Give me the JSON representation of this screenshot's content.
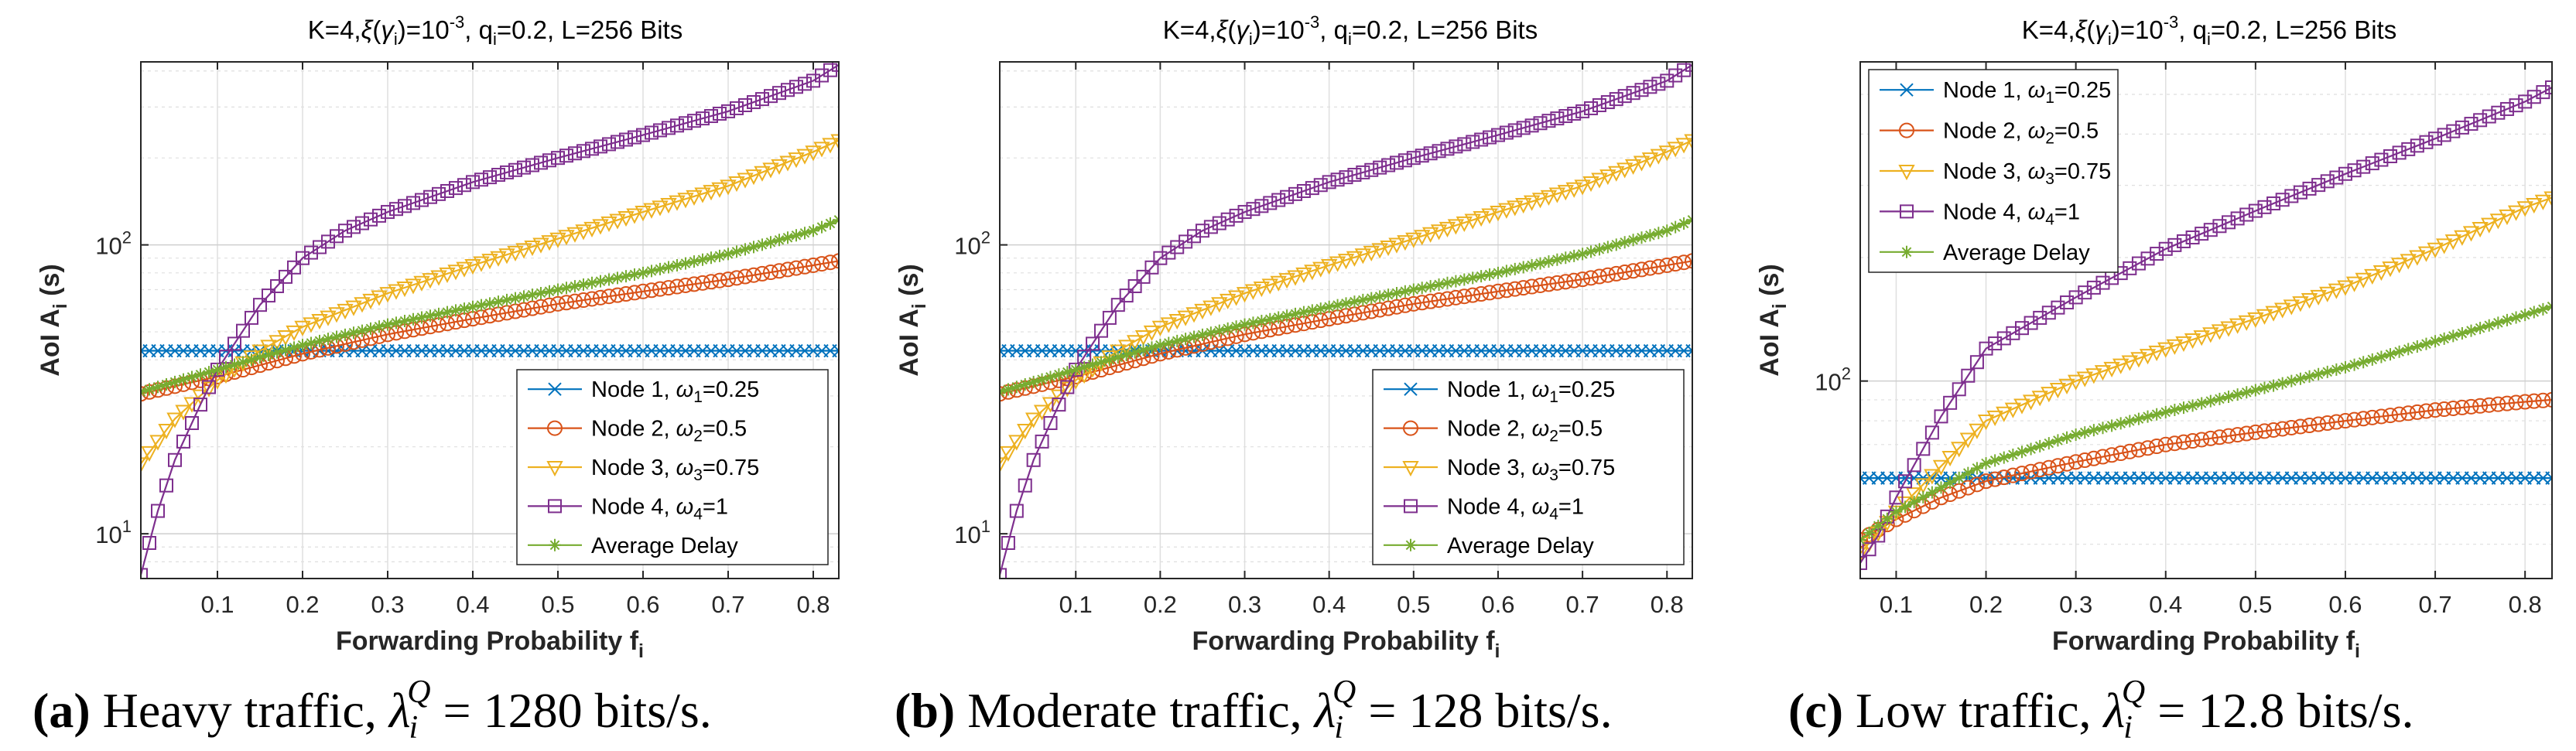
{
  "colors": {
    "node1": "#0072BD",
    "node2": "#D95319",
    "node3": "#EDB120",
    "node4": "#7E2F8E",
    "avg": "#77AC30",
    "grid": "#DFDFDF",
    "axis": "#262626"
  },
  "figure_caption": [
    {
      "label": "(a)",
      "text": "Heavy traffic,",
      "lambda": "λ",
      "sup": "Q",
      "sub": "i",
      "value": "= 1280 bits/s."
    },
    {
      "label": "(b)",
      "text": "Moderate traffic,",
      "lambda": "λ",
      "sup": "Q",
      "sub": "i",
      "value": "= 128 bits/s."
    },
    {
      "label": "(c)",
      "text": "Low traffic,",
      "lambda": "λ",
      "sup": "Q",
      "sub": "i",
      "value": "= 12.8 bits/s."
    }
  ],
  "chart_data": [
    {
      "type": "line",
      "title": "K=4,ξ(γi)=10^-3, qi=0.2, L=256 Bits",
      "xlabel": "Forwarding Probability fi",
      "ylabel": "AoI Ai (s)",
      "yscale": "log",
      "xlim": [
        0.01,
        0.83
      ],
      "ylim": [
        7,
        430
      ],
      "xticks": [
        0.1,
        0.2,
        0.3,
        0.4,
        0.5,
        0.6,
        0.7,
        0.8
      ],
      "yticks": [
        {
          "value": 10,
          "label": "10",
          "exp": "1"
        },
        {
          "value": 100,
          "label": "10",
          "exp": "2"
        }
      ],
      "legend_position": "bottom-right",
      "grid": true,
      "series": [
        {
          "name": "Node 1",
          "weight": "ω1=0.25",
          "marker": "x",
          "points": [
            [
              0.01,
              43
            ],
            [
              0.83,
              43
            ]
          ]
        },
        {
          "name": "Node 2",
          "weight": "ω2=0.5",
          "marker": "o",
          "points": [
            [
              0.01,
              30.5
            ],
            [
              0.1,
              35
            ],
            [
              0.2,
              42
            ],
            [
              0.3,
              49
            ],
            [
              0.4,
              55.5
            ],
            [
              0.5,
              62.5
            ],
            [
              0.6,
              69
            ],
            [
              0.7,
              76
            ],
            [
              0.8,
              85
            ],
            [
              0.83,
              88
            ]
          ]
        },
        {
          "name": "Node 3",
          "weight": "ω3=0.75",
          "marker": "v",
          "points": [
            [
              0.01,
              17.5
            ],
            [
              0.05,
              25
            ],
            [
              0.1,
              34
            ],
            [
              0.15,
              43
            ],
            [
              0.2,
              52
            ],
            [
              0.3,
              68
            ],
            [
              0.4,
              85
            ],
            [
              0.5,
              105
            ],
            [
              0.6,
              130
            ],
            [
              0.7,
              160
            ],
            [
              0.8,
              210
            ],
            [
              0.83,
              230
            ]
          ]
        },
        {
          "name": "Node 4",
          "weight": "ω4=1",
          "marker": "s",
          "points": [
            [
              0.01,
              7.2
            ],
            [
              0.03,
              12
            ],
            [
              0.05,
              18
            ],
            [
              0.08,
              28
            ],
            [
              0.1,
              37
            ],
            [
              0.15,
              62
            ],
            [
              0.2,
              90
            ],
            [
              0.25,
              112
            ],
            [
              0.3,
              130
            ],
            [
              0.4,
              165
            ],
            [
              0.5,
              200
            ],
            [
              0.6,
              240
            ],
            [
              0.7,
              290
            ],
            [
              0.8,
              370
            ],
            [
              0.83,
              420
            ]
          ]
        },
        {
          "name": "Average Delay",
          "weight": "",
          "marker": "*",
          "points": [
            [
              0.01,
              31
            ],
            [
              0.1,
              37
            ],
            [
              0.2,
              45
            ],
            [
              0.3,
              53
            ],
            [
              0.4,
              61
            ],
            [
              0.5,
              70
            ],
            [
              0.6,
              80
            ],
            [
              0.7,
              93
            ],
            [
              0.8,
              112
            ],
            [
              0.83,
              122
            ]
          ]
        }
      ]
    },
    {
      "type": "line",
      "title": "K=4,ξ(γi)=10^-3, qi=0.2, L=256 Bits",
      "xlabel": "Forwarding Probability fi",
      "ylabel": "AoI Ai (s)",
      "yscale": "log",
      "xlim": [
        0.01,
        0.83
      ],
      "ylim": [
        7,
        430
      ],
      "xticks": [
        0.1,
        0.2,
        0.3,
        0.4,
        0.5,
        0.6,
        0.7,
        0.8
      ],
      "yticks": [
        {
          "value": 10,
          "label": "10",
          "exp": "1"
        },
        {
          "value": 100,
          "label": "10",
          "exp": "2"
        }
      ],
      "legend_position": "bottom-right",
      "grid": true,
      "series": [
        {
          "name": "Node 1",
          "weight": "ω1=0.25",
          "marker": "x",
          "points": [
            [
              0.01,
              43
            ],
            [
              0.83,
              43
            ]
          ]
        },
        {
          "name": "Node 2",
          "weight": "ω2=0.5",
          "marker": "o",
          "points": [
            [
              0.01,
              30.5
            ],
            [
              0.1,
              35
            ],
            [
              0.2,
              42
            ],
            [
              0.3,
              49
            ],
            [
              0.4,
              55.5
            ],
            [
              0.5,
              62.5
            ],
            [
              0.6,
              69
            ],
            [
              0.7,
              76
            ],
            [
              0.8,
              85
            ],
            [
              0.83,
              88
            ]
          ]
        },
        {
          "name": "Node 3",
          "weight": "ω3=0.75",
          "marker": "v",
          "points": [
            [
              0.01,
              17.5
            ],
            [
              0.05,
              25
            ],
            [
              0.1,
              34
            ],
            [
              0.15,
              43
            ],
            [
              0.2,
              52
            ],
            [
              0.3,
              68
            ],
            [
              0.4,
              85
            ],
            [
              0.5,
              105
            ],
            [
              0.6,
              130
            ],
            [
              0.7,
              160
            ],
            [
              0.8,
              210
            ],
            [
              0.83,
              230
            ]
          ]
        },
        {
          "name": "Node 4",
          "weight": "ω4=1",
          "marker": "s",
          "points": [
            [
              0.01,
              7.2
            ],
            [
              0.03,
              12
            ],
            [
              0.05,
              18
            ],
            [
              0.08,
              28
            ],
            [
              0.1,
              37
            ],
            [
              0.15,
              62
            ],
            [
              0.2,
              90
            ],
            [
              0.25,
              112
            ],
            [
              0.3,
              130
            ],
            [
              0.4,
              165
            ],
            [
              0.5,
              200
            ],
            [
              0.6,
              240
            ],
            [
              0.7,
              290
            ],
            [
              0.8,
              370
            ],
            [
              0.83,
              420
            ]
          ]
        },
        {
          "name": "Average Delay",
          "weight": "",
          "marker": "*",
          "points": [
            [
              0.01,
              31
            ],
            [
              0.1,
              37
            ],
            [
              0.2,
              45
            ],
            [
              0.3,
              53
            ],
            [
              0.4,
              61
            ],
            [
              0.5,
              70
            ],
            [
              0.6,
              80
            ],
            [
              0.7,
              93
            ],
            [
              0.8,
              112
            ],
            [
              0.83,
              122
            ]
          ]
        }
      ]
    },
    {
      "type": "line",
      "title": "K=4,ξ(γi)=10^-3, qi=0.2, L=256 Bits",
      "xlabel": "Forwarding Probability fi",
      "ylabel": "AoI Ai (s)",
      "yscale": "log",
      "xlim": [
        0.06,
        0.83
      ],
      "ylim": [
        33,
        600
      ],
      "xticks": [
        0.1,
        0.2,
        0.3,
        0.4,
        0.5,
        0.6,
        0.7,
        0.8
      ],
      "yticks": [
        {
          "value": 100,
          "label": "10",
          "exp": "2"
        }
      ],
      "legend_position": "top-left",
      "grid": true,
      "series": [
        {
          "name": "Node 1",
          "weight": "ω1=0.25",
          "marker": "x",
          "points": [
            [
              0.06,
              58
            ],
            [
              0.83,
              58
            ]
          ]
        },
        {
          "name": "Node 2",
          "weight": "ω2=0.5",
          "marker": "o",
          "points": [
            [
              0.06,
              41
            ],
            [
              0.1,
              46
            ],
            [
              0.15,
              52
            ],
            [
              0.2,
              57
            ],
            [
              0.3,
              63.5
            ],
            [
              0.4,
              70
            ],
            [
              0.5,
              75
            ],
            [
              0.6,
              80
            ],
            [
              0.7,
              85
            ],
            [
              0.8,
              89
            ],
            [
              0.83,
              90
            ]
          ]
        },
        {
          "name": "Node 3",
          "weight": "ω3=0.75",
          "marker": "v",
          "points": [
            [
              0.06,
              38
            ],
            [
              0.1,
              48
            ],
            [
              0.15,
              62
            ],
            [
              0.2,
              80
            ],
            [
              0.3,
              100
            ],
            [
              0.4,
              120
            ],
            [
              0.5,
              142
            ],
            [
              0.6,
              170
            ],
            [
              0.7,
              210
            ],
            [
              0.8,
              265
            ],
            [
              0.83,
              280
            ]
          ]
        },
        {
          "name": "Node 4",
          "weight": "ω4=1",
          "marker": "s",
          "points": [
            [
              0.06,
              36
            ],
            [
              0.08,
              42
            ],
            [
              0.1,
              52
            ],
            [
              0.15,
              82
            ],
            [
              0.2,
              120
            ],
            [
              0.3,
              160
            ],
            [
              0.4,
              210
            ],
            [
              0.5,
              260
            ],
            [
              0.6,
              320
            ],
            [
              0.7,
              390
            ],
            [
              0.8,
              480
            ],
            [
              0.83,
              520
            ]
          ]
        },
        {
          "name": "Average Delay",
          "weight": "",
          "marker": "*",
          "points": [
            [
              0.06,
              41
            ],
            [
              0.1,
              48
            ],
            [
              0.15,
              55
            ],
            [
              0.2,
              63
            ],
            [
              0.3,
              74
            ],
            [
              0.4,
              84
            ],
            [
              0.5,
              95
            ],
            [
              0.6,
              108
            ],
            [
              0.7,
              125
            ],
            [
              0.8,
              145
            ],
            [
              0.83,
              152
            ]
          ]
        }
      ]
    }
  ]
}
